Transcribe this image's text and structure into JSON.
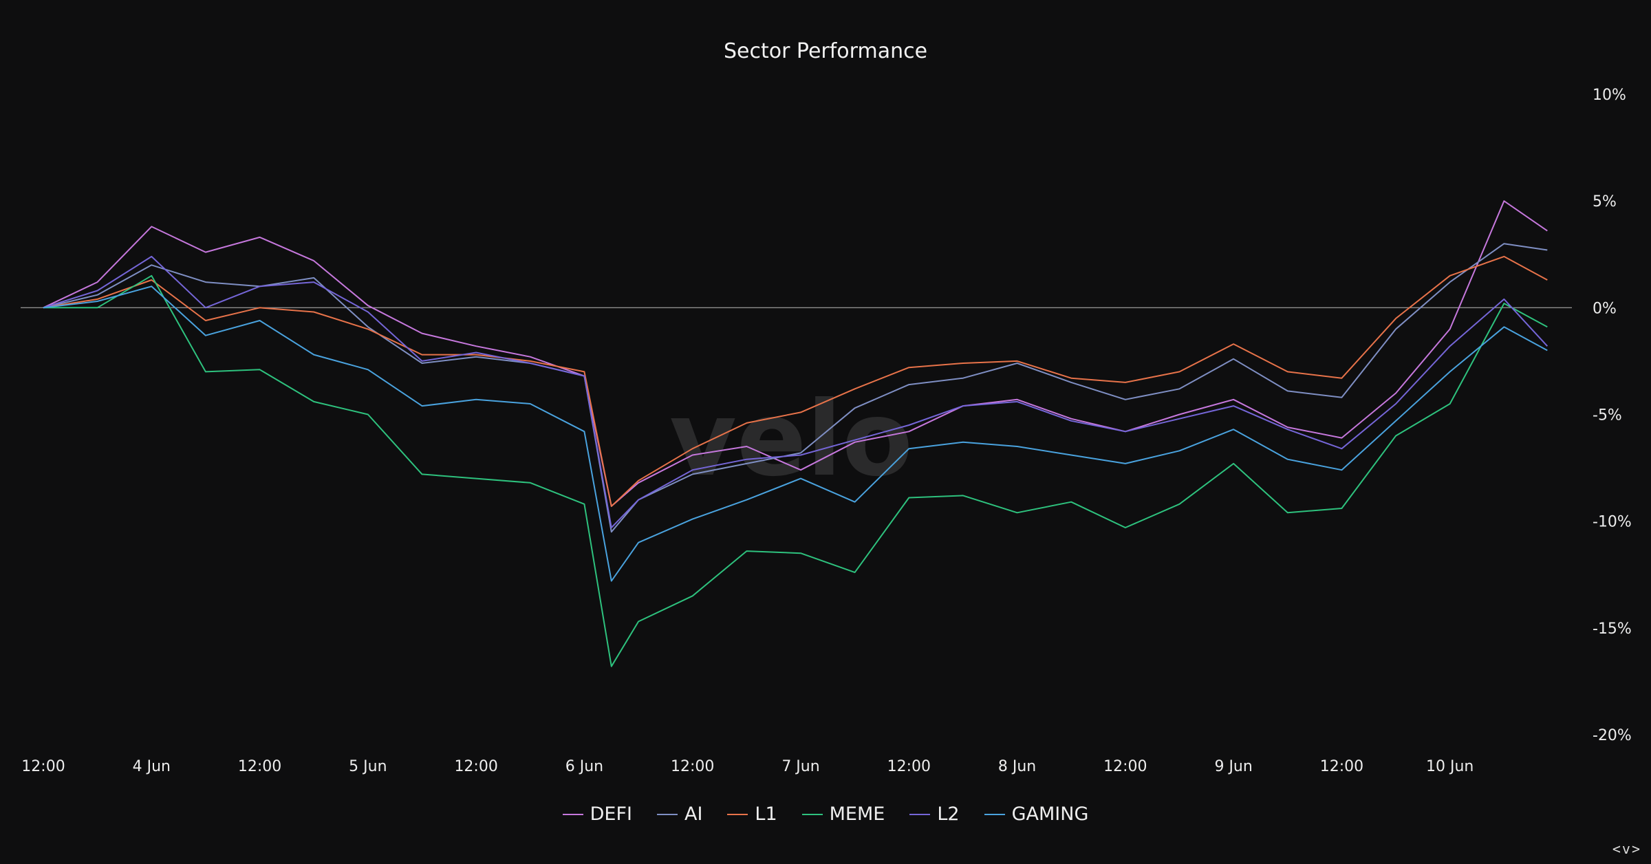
{
  "chart_data": {
    "type": "line",
    "title": "Sector Performance",
    "xlabel": "",
    "ylabel": "",
    "watermark": "velo",
    "ylim": [
      -20,
      10
    ],
    "yticks": [
      "10%",
      "5%",
      "0%",
      "-5%",
      "-10%",
      "-15%",
      "-20%"
    ],
    "yticks_values": [
      10,
      5,
      0,
      -5,
      -10,
      -15,
      -20
    ],
    "xlim": [
      0,
      7.0
    ],
    "xticks": [
      "12:00",
      "4 Jun",
      "12:00",
      "5 Jun",
      "12:00",
      "6 Jun",
      "12:00",
      "7 Jun",
      "12:00",
      "8 Jun",
      "12:00",
      "9 Jun",
      "12:00",
      "10 Jun"
    ],
    "xticks_positions": [
      0,
      0.5,
      1,
      1.5,
      2,
      2.5,
      3,
      3.5,
      4,
      4.5,
      5,
      5.5,
      6,
      6.5
    ],
    "grid": "zero line only",
    "legend_position": "bottom-center",
    "x": [
      0.0,
      0.25,
      0.5,
      0.75,
      1.0,
      1.25,
      1.5,
      1.75,
      2.0,
      2.25,
      2.5,
      2.625,
      2.75,
      3.0,
      3.25,
      3.5,
      3.75,
      4.0,
      4.25,
      4.5,
      4.75,
      5.0,
      5.25,
      5.5,
      5.75,
      6.0,
      6.25,
      6.5,
      6.75,
      6.95
    ],
    "series": [
      {
        "name": "DEFI",
        "color": "#c678dd",
        "values": [
          0,
          1.2,
          3.8,
          2.6,
          3.3,
          2.2,
          0.1,
          -1.2,
          -1.8,
          -2.3,
          -3.2,
          -9.3,
          -8.2,
          -6.9,
          -6.5,
          -7.6,
          -6.3,
          -5.8,
          -4.6,
          -4.3,
          -5.2,
          -5.8,
          -5.0,
          -4.3,
          -5.6,
          -6.1,
          -4.0,
          -1.0,
          5.0,
          3.6
        ]
      },
      {
        "name": "AI",
        "color": "#7f8fc4",
        "values": [
          0,
          0.6,
          2.0,
          1.2,
          1.0,
          1.4,
          -0.9,
          -2.6,
          -2.3,
          -2.6,
          -3.2,
          -10.5,
          -9.0,
          -7.8,
          -7.3,
          -6.8,
          -4.7,
          -3.6,
          -3.3,
          -2.6,
          -3.5,
          -4.3,
          -3.8,
          -2.4,
          -3.9,
          -4.2,
          -1.0,
          1.2,
          3.0,
          2.7
        ]
      },
      {
        "name": "L1",
        "color": "#e8734a",
        "values": [
          0,
          0.4,
          1.3,
          -0.6,
          0.0,
          -0.2,
          -1.0,
          -2.2,
          -2.2,
          -2.5,
          -3.0,
          -9.3,
          -8.1,
          -6.6,
          -5.4,
          -4.9,
          -3.8,
          -2.8,
          -2.6,
          -2.5,
          -3.3,
          -3.5,
          -3.0,
          -1.7,
          -3.0,
          -3.3,
          -0.5,
          1.5,
          2.4,
          1.3
        ]
      },
      {
        "name": "MEME",
        "color": "#2ec27e",
        "values": [
          0,
          0.0,
          1.5,
          -3.0,
          -2.9,
          -4.4,
          -5.0,
          -7.8,
          -8.0,
          -8.2,
          -9.2,
          -16.8,
          -14.7,
          -13.5,
          -11.4,
          -11.5,
          -12.4,
          -8.9,
          -8.8,
          -9.6,
          -9.1,
          -10.3,
          -9.2,
          -7.3,
          -9.6,
          -9.4,
          -6.0,
          -4.5,
          0.2,
          -0.9
        ]
      },
      {
        "name": "L2",
        "color": "#7566d8",
        "values": [
          0,
          0.8,
          2.4,
          0.0,
          1.0,
          1.2,
          -0.2,
          -2.5,
          -2.1,
          -2.6,
          -3.2,
          -10.3,
          -9.0,
          -7.6,
          -7.1,
          -6.9,
          -6.2,
          -5.5,
          -4.6,
          -4.4,
          -5.3,
          -5.8,
          -5.2,
          -4.6,
          -5.7,
          -6.6,
          -4.5,
          -1.8,
          0.4,
          -1.8
        ]
      },
      {
        "name": "GAMING",
        "color": "#4aa3df",
        "values": [
          0,
          0.3,
          1.0,
          -1.3,
          -0.6,
          -2.2,
          -2.9,
          -4.6,
          -4.3,
          -4.5,
          -5.8,
          -12.8,
          -11.0,
          -9.9,
          -9.0,
          -8.0,
          -9.1,
          -6.6,
          -6.3,
          -6.5,
          -6.9,
          -7.3,
          -6.7,
          -5.7,
          -7.1,
          -7.6,
          -5.3,
          -3.0,
          -0.9,
          -2.0
        ]
      }
    ]
  },
  "nav": {
    "label": "<v>"
  }
}
